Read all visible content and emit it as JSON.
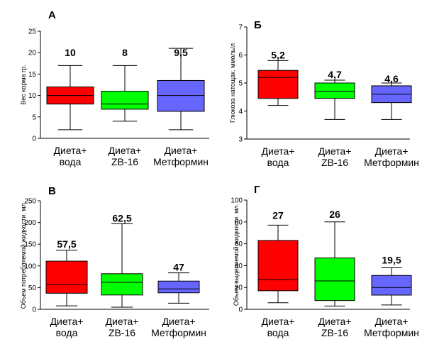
{
  "chart_data": [
    {
      "panel": "А",
      "type": "box",
      "ylabel": "Вес корма гр.",
      "ylim": [
        0,
        25
      ],
      "yticks": [
        0,
        5,
        10,
        15,
        20,
        25
      ],
      "categories": [
        [
          "Диета+",
          "вода"
        ],
        [
          "Диета+",
          "ZB-16"
        ],
        [
          "Диета+",
          "Метформин"
        ]
      ],
      "labels": [
        "10",
        "8",
        "9,5"
      ],
      "colors": [
        "#ff0000",
        "#00ff00",
        "#6666ff"
      ],
      "boxes": [
        {
          "min": 2,
          "q1": 8,
          "median": 10,
          "q3": 12,
          "max": 17
        },
        {
          "min": 4,
          "q1": 6.8,
          "median": 8,
          "q3": 11,
          "max": 17
        },
        {
          "min": 2,
          "q1": 6.3,
          "median": 10,
          "q3": 13.5,
          "max": 21
        }
      ],
      "label_y": 20
    },
    {
      "panel": "Б",
      "type": "box",
      "ylabel": "Глюкоза натощак. ммоль/л",
      "ylim": [
        3,
        7
      ],
      "yticks": [
        3,
        4,
        5,
        6,
        7
      ],
      "categories": [
        [
          "Диета+",
          "вода"
        ],
        [
          "Диета+",
          "ZB-16"
        ],
        [
          "Диета+",
          "Метформин"
        ]
      ],
      "labels": [
        "5,2",
        "4,7",
        "4,6"
      ],
      "colors": [
        "#ff0000",
        "#00ff00",
        "#6666ff"
      ],
      "boxes": [
        {
          "min": 4.2,
          "q1": 4.45,
          "median": 5.2,
          "q3": 5.45,
          "max": 5.8
        },
        {
          "min": 3.7,
          "q1": 4.45,
          "median": 4.7,
          "q3": 5.0,
          "max": 5.1
        },
        {
          "min": 3.7,
          "q1": 4.3,
          "median": 4.6,
          "q3": 4.9,
          "max": 5.0
        }
      ],
      "label_y": [
        6.0,
        5.3,
        5.15
      ]
    },
    {
      "panel": "В",
      "type": "box",
      "ylabel": "Объем потребляемой жидкости. мл.",
      "ylim": [
        0,
        250
      ],
      "yticks": [
        0,
        50,
        100,
        150,
        200,
        250
      ],
      "categories": [
        [
          "Диета+",
          "вода"
        ],
        [
          "Диета+",
          "ZB-16"
        ],
        [
          "Диета+",
          "Метформин"
        ]
      ],
      "labels": [
        "57,5",
        "62,5",
        "47"
      ],
      "colors": [
        "#ff0000",
        "#00ff00",
        "#6666ff"
      ],
      "boxes": [
        {
          "min": 8,
          "q1": 37,
          "median": 57,
          "q3": 111,
          "max": 136
        },
        {
          "min": 5,
          "q1": 33,
          "median": 62,
          "q3": 82,
          "max": 197
        },
        {
          "min": 14,
          "q1": 38,
          "median": 47,
          "q3": 65,
          "max": 84
        }
      ],
      "label_y": [
        150,
        210,
        97
      ]
    },
    {
      "panel": "Г",
      "type": "box",
      "ylabel": "Объем выделяемой жидкости. мл.",
      "ylim": [
        0,
        100
      ],
      "yticks": [
        0,
        20,
        40,
        60,
        80,
        100
      ],
      "categories": [
        [
          "Диета+",
          "вода"
        ],
        [
          "Диета+",
          "ZB-16"
        ],
        [
          "Диета+",
          "Метформин"
        ]
      ],
      "labels": [
        "27",
        "26",
        "19,5"
      ],
      "colors": [
        "#ff0000",
        "#00ff00",
        "#6666ff"
      ],
      "boxes": [
        {
          "min": 6,
          "q1": 17,
          "median": 27,
          "q3": 63,
          "max": 77
        },
        {
          "min": 3,
          "q1": 8,
          "median": 26,
          "q3": 47,
          "max": 80
        },
        {
          "min": 4,
          "q1": 13,
          "median": 20,
          "q3": 31,
          "max": 38
        }
      ],
      "label_y": [
        86,
        87,
        45
      ]
    }
  ]
}
